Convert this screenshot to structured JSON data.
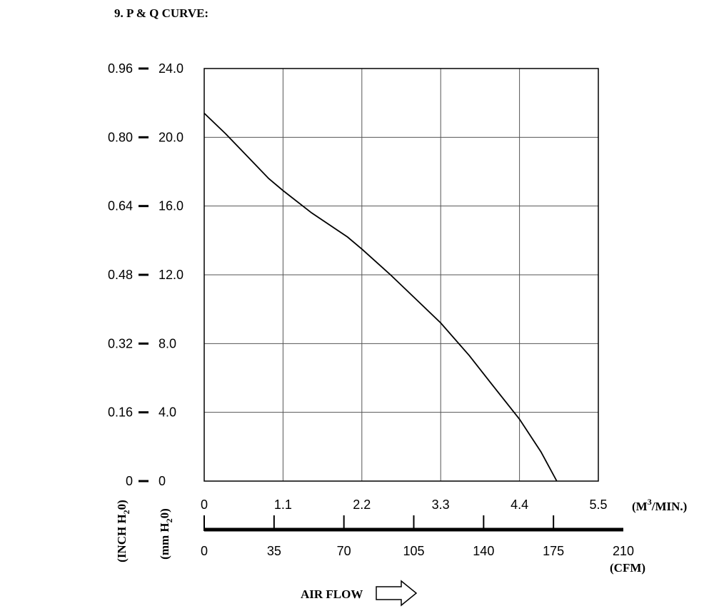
{
  "chart_data": {
    "type": "line",
    "title": "9. P & Q CURVE:",
    "grid": true,
    "x_primary": {
      "unit_label": "(M",
      "unit_sup": "3",
      "unit_suffix": "/MIN.)",
      "range": [
        0,
        5.5
      ],
      "ticks": [
        "0",
        "1.1",
        "2.2",
        "3.3",
        "4.4",
        "5.5"
      ]
    },
    "x_secondary": {
      "unit_label": "(CFM)",
      "range": [
        0,
        210
      ],
      "ticks": [
        "0",
        "35",
        "70",
        "105",
        "140",
        "175",
        "210"
      ]
    },
    "y_primary": {
      "label_pre": "(mm H",
      "label_sub": "2",
      "label_post": "0)",
      "range": [
        0,
        24
      ],
      "ticks": [
        "0",
        "4.0",
        "8.0",
        "12.0",
        "16.0",
        "20.0",
        "24.0"
      ]
    },
    "y_secondary": {
      "label_pre": "(INCH H",
      "label_sub": "2",
      "label_post": "0)",
      "range": [
        0,
        0.96
      ],
      "ticks": [
        "0",
        "0.16",
        "0.32",
        "0.48",
        "0.64",
        "0.80",
        "0.96"
      ]
    },
    "series": [
      {
        "x": [
          0,
          0.3,
          0.6,
          0.9,
          1.1,
          1.5,
          2.0,
          2.2,
          2.6,
          3.0,
          3.3,
          3.7,
          4.0,
          4.4,
          4.7,
          4.92
        ],
        "y": [
          21.4,
          20.2,
          18.9,
          17.6,
          16.9,
          15.6,
          14.2,
          13.5,
          12.0,
          10.4,
          9.2,
          7.3,
          5.7,
          3.6,
          1.7,
          0
        ]
      }
    ],
    "annotation": "AIR FLOW"
  },
  "colors": {
    "line": "#000000",
    "grid": "#555555",
    "background": "#ffffff"
  }
}
